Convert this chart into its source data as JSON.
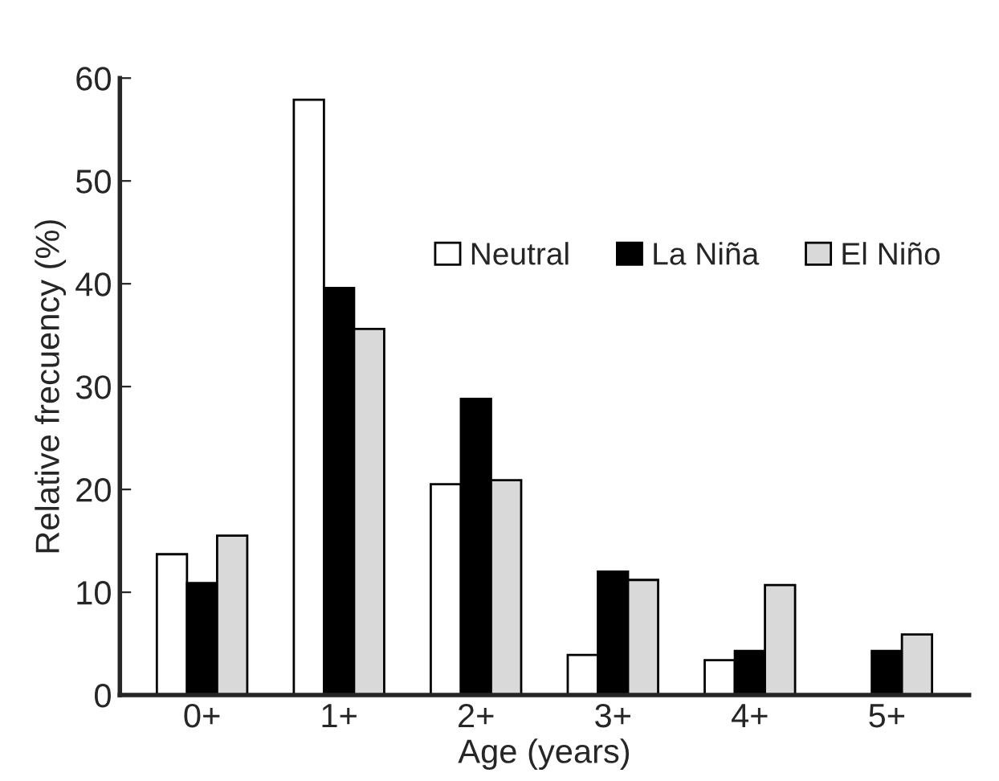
{
  "chart_data": {
    "type": "bar",
    "xlabel": "Age (years)",
    "ylabel": "Relative frecuency (%)",
    "categories": [
      "0+",
      "1+",
      "2+",
      "3+",
      "4+",
      "5+"
    ],
    "series": [
      {
        "name": "Neutral",
        "color": "#ffffff",
        "values": [
          13.7,
          57.9,
          20.5,
          3.9,
          3.4,
          null
        ]
      },
      {
        "name": "La Niña",
        "color": "#000000",
        "values": [
          10.9,
          39.6,
          28.8,
          12.0,
          4.3,
          4.3
        ]
      },
      {
        "name": "El Niño",
        "color": "#d9d9d9",
        "values": [
          15.5,
          35.6,
          20.9,
          11.2,
          10.7,
          5.9
        ]
      }
    ],
    "ylim": [
      0,
      60
    ],
    "yticks": [
      0,
      10,
      20,
      30,
      40,
      50,
      60
    ],
    "grid": false,
    "legend": "top right"
  }
}
